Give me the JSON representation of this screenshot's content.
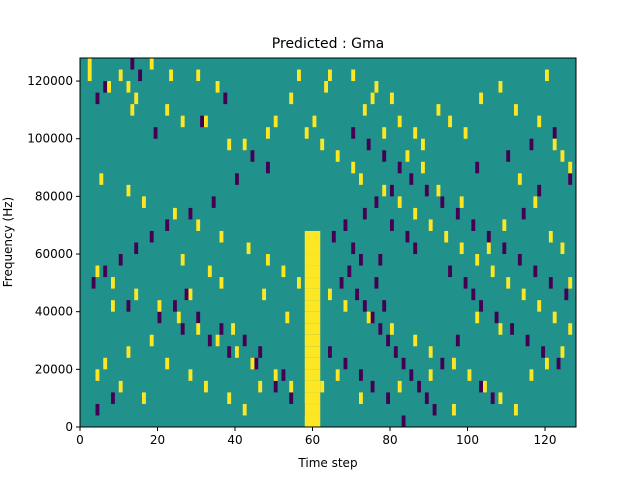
{
  "chart_data": {
    "type": "heatmap",
    "title": "Predicted : Gma",
    "xlabel": "Time step",
    "ylabel": "Frequency (Hz)",
    "xlim": [
      0,
      128
    ],
    "ylim": [
      0,
      128000
    ],
    "xticks": [
      0,
      20,
      40,
      60,
      80,
      100,
      120
    ],
    "xtick_labels": [
      "0",
      "20",
      "40",
      "60",
      "80",
      "100",
      "120"
    ],
    "yticks": [
      0,
      20000,
      40000,
      60000,
      80000,
      100000,
      120000
    ],
    "ytick_labels": [
      "0",
      "20000",
      "40000",
      "60000",
      "80000",
      "100000",
      "120000"
    ],
    "grid": false,
    "colormap": "viridis",
    "background_value": 0,
    "colors": {
      "low": "#440154",
      "background": "#21918c",
      "high": "#fde725"
    },
    "value_levels": {
      "low": -1,
      "background": 0,
      "high": 1
    },
    "freq_bin_hz": 4000,
    "high_cells": [
      [
        2,
        124000
      ],
      [
        2,
        120000
      ],
      [
        7,
        116000
      ],
      [
        10,
        120000
      ],
      [
        12,
        116000
      ],
      [
        13,
        108000
      ],
      [
        14,
        112000
      ],
      [
        18,
        124000
      ],
      [
        23,
        120000
      ],
      [
        30,
        120000
      ],
      [
        35,
        116000
      ],
      [
        22,
        108000
      ],
      [
        26,
        104000
      ],
      [
        32,
        104000
      ],
      [
        38,
        96000
      ],
      [
        42,
        96000
      ],
      [
        48,
        100000
      ],
      [
        50,
        104000
      ],
      [
        56,
        120000
      ],
      [
        63,
        116000
      ],
      [
        54,
        112000
      ],
      [
        73,
        108000
      ],
      [
        75,
        112000
      ],
      [
        80,
        112000
      ],
      [
        82,
        104000
      ],
      [
        86,
        100000
      ],
      [
        88,
        96000
      ],
      [
        92,
        108000
      ],
      [
        95,
        104000
      ],
      [
        99,
        100000
      ],
      [
        103,
        112000
      ],
      [
        108,
        116000
      ],
      [
        112,
        108000
      ],
      [
        118,
        104000
      ],
      [
        122,
        96000
      ],
      [
        124,
        92000
      ],
      [
        126,
        88000
      ],
      [
        120,
        120000
      ],
      [
        5,
        84000
      ],
      [
        12,
        80000
      ],
      [
        16,
        76000
      ],
      [
        24,
        72000
      ],
      [
        30,
        68000
      ],
      [
        36,
        64000
      ],
      [
        43,
        60000
      ],
      [
        48,
        56000
      ],
      [
        52,
        52000
      ],
      [
        56,
        48000
      ],
      [
        66,
        92000
      ],
      [
        70,
        88000
      ],
      [
        72,
        84000
      ],
      [
        78,
        80000
      ],
      [
        82,
        76000
      ],
      [
        86,
        72000
      ],
      [
        90,
        68000
      ],
      [
        94,
        64000
      ],
      [
        98,
        60000
      ],
      [
        102,
        56000
      ],
      [
        106,
        52000
      ],
      [
        110,
        48000
      ],
      [
        114,
        44000
      ],
      [
        118,
        40000
      ],
      [
        122,
        36000
      ],
      [
        126,
        32000
      ],
      [
        4,
        52000
      ],
      [
        8,
        48000
      ],
      [
        14,
        44000
      ],
      [
        20,
        40000
      ],
      [
        25,
        36000
      ],
      [
        30,
        32000
      ],
      [
        35,
        28000
      ],
      [
        40,
        24000
      ],
      [
        44,
        20000
      ],
      [
        50,
        16000
      ],
      [
        54,
        12000
      ],
      [
        64,
        44000
      ],
      [
        68,
        40000
      ],
      [
        74,
        36000
      ],
      [
        80,
        32000
      ],
      [
        86,
        28000
      ],
      [
        90,
        24000
      ],
      [
        96,
        20000
      ],
      [
        100,
        16000
      ],
      [
        104,
        12000
      ],
      [
        108,
        8000
      ],
      [
        112,
        4000
      ],
      [
        116,
        16000
      ],
      [
        120,
        20000
      ],
      [
        124,
        24000
      ],
      [
        4,
        16000
      ],
      [
        10,
        12000
      ],
      [
        16,
        8000
      ],
      [
        22,
        20000
      ],
      [
        28,
        16000
      ],
      [
        32,
        12000
      ],
      [
        38,
        8000
      ],
      [
        42,
        4000
      ],
      [
        46,
        12000
      ],
      [
        124,
        60000
      ],
      [
        121,
        64000
      ],
      [
        126,
        48000
      ],
      [
        109,
        68000
      ],
      [
        105,
        60000
      ],
      [
        117,
        76000
      ],
      [
        113,
        84000
      ],
      [
        98,
        76000
      ],
      [
        92,
        80000
      ],
      [
        88,
        88000
      ],
      [
        84,
        92000
      ],
      [
        78,
        100000
      ],
      [
        76,
        116000
      ],
      [
        70,
        120000
      ],
      [
        64,
        120000
      ],
      [
        60,
        104000
      ],
      [
        58,
        100000
      ],
      [
        62,
        96000
      ],
      [
        8,
        40000
      ],
      [
        26,
        56000
      ],
      [
        33,
        52000
      ],
      [
        47,
        44000
      ],
      [
        53,
        36000
      ],
      [
        39,
        32000
      ],
      [
        18,
        28000
      ],
      [
        12,
        24000
      ],
      [
        6,
        20000
      ],
      [
        28,
        44000
      ],
      [
        36,
        48000
      ],
      [
        62,
        12000
      ],
      [
        66,
        16000
      ],
      [
        72,
        8000
      ],
      [
        82,
        12000
      ],
      [
        90,
        16000
      ],
      [
        96,
        4000
      ],
      [
        102,
        36000
      ],
      [
        108,
        32000
      ]
    ],
    "low_cells": [
      [
        13,
        124000
      ],
      [
        15,
        120000
      ],
      [
        6,
        116000
      ],
      [
        4,
        112000
      ],
      [
        19,
        100000
      ],
      [
        31,
        104000
      ],
      [
        37,
        112000
      ],
      [
        44,
        92000
      ],
      [
        48,
        88000
      ],
      [
        40,
        84000
      ],
      [
        34,
        76000
      ],
      [
        28,
        72000
      ],
      [
        22,
        68000
      ],
      [
        18,
        64000
      ],
      [
        14,
        60000
      ],
      [
        10,
        56000
      ],
      [
        6,
        52000
      ],
      [
        3,
        48000
      ],
      [
        12,
        40000
      ],
      [
        20,
        36000
      ],
      [
        26,
        32000
      ],
      [
        33,
        28000
      ],
      [
        38,
        24000
      ],
      [
        45,
        20000
      ],
      [
        50,
        12000
      ],
      [
        54,
        8000
      ],
      [
        58,
        4000
      ],
      [
        70,
        100000
      ],
      [
        74,
        96000
      ],
      [
        78,
        92000
      ],
      [
        82,
        88000
      ],
      [
        85,
        84000
      ],
      [
        89,
        80000
      ],
      [
        93,
        76000
      ],
      [
        97,
        72000
      ],
      [
        101,
        68000
      ],
      [
        105,
        64000
      ],
      [
        109,
        60000
      ],
      [
        113,
        56000
      ],
      [
        117,
        52000
      ],
      [
        121,
        48000
      ],
      [
        125,
        44000
      ],
      [
        103,
        40000
      ],
      [
        107,
        36000
      ],
      [
        111,
        32000
      ],
      [
        115,
        28000
      ],
      [
        119,
        24000
      ],
      [
        123,
        20000
      ],
      [
        70,
        60000
      ],
      [
        72,
        56000
      ],
      [
        69,
        52000
      ],
      [
        67,
        48000
      ],
      [
        71,
        44000
      ],
      [
        73,
        40000
      ],
      [
        75,
        36000
      ],
      [
        77,
        32000
      ],
      [
        79,
        28000
      ],
      [
        81,
        24000
      ],
      [
        83,
        20000
      ],
      [
        85,
        16000
      ],
      [
        87,
        12000
      ],
      [
        89,
        8000
      ],
      [
        91,
        4000
      ],
      [
        77,
        56000
      ],
      [
        76,
        48000
      ],
      [
        78,
        40000
      ],
      [
        80,
        68000
      ],
      [
        84,
        64000
      ],
      [
        86,
        60000
      ],
      [
        95,
        52000
      ],
      [
        99,
        48000
      ],
      [
        101,
        44000
      ],
      [
        97,
        28000
      ],
      [
        93,
        20000
      ],
      [
        103,
        12000
      ],
      [
        106,
        8000
      ],
      [
        27,
        44000
      ],
      [
        24,
        40000
      ],
      [
        30,
        36000
      ],
      [
        36,
        32000
      ],
      [
        42,
        28000
      ],
      [
        46,
        24000
      ],
      [
        52,
        16000
      ],
      [
        8,
        8000
      ],
      [
        4,
        4000
      ],
      [
        60,
        28000
      ],
      [
        64,
        24000
      ],
      [
        68,
        20000
      ],
      [
        72,
        16000
      ],
      [
        75,
        12000
      ],
      [
        79,
        8000
      ],
      [
        83,
        0
      ],
      [
        65,
        64000
      ],
      [
        68,
        68000
      ],
      [
        73,
        72000
      ],
      [
        76,
        76000
      ],
      [
        80,
        80000
      ],
      [
        102,
        88000
      ],
      [
        110,
        92000
      ],
      [
        116,
        96000
      ],
      [
        122,
        100000
      ],
      [
        126,
        84000
      ],
      [
        118,
        80000
      ],
      [
        114,
        72000
      ]
    ],
    "predicted_band": {
      "x_start": 58,
      "x_end": 62,
      "rows": [
        [
          0,
          4000,
          1
        ],
        [
          4000,
          8000,
          1
        ],
        [
          8000,
          12000,
          1
        ],
        [
          12000,
          16000,
          1
        ],
        [
          16000,
          20000,
          1
        ],
        [
          20000,
          24000,
          1
        ],
        [
          24000,
          28000,
          1
        ],
        [
          28000,
          32000,
          1
        ],
        [
          32000,
          36000,
          1
        ],
        [
          36000,
          40000,
          1
        ],
        [
          40000,
          44000,
          1
        ],
        [
          44000,
          48000,
          1
        ],
        [
          48000,
          52000,
          1
        ],
        [
          52000,
          56000,
          1
        ],
        [
          56000,
          60000,
          1
        ],
        [
          60000,
          64000,
          1
        ],
        [
          64000,
          68000,
          1
        ]
      ]
    }
  }
}
